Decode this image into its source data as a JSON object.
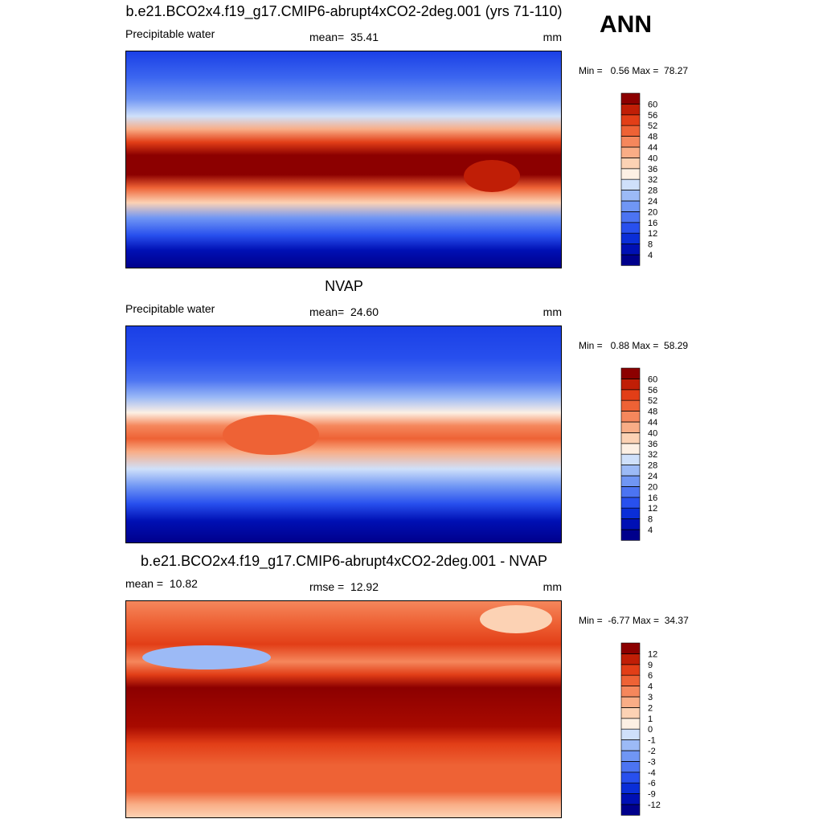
{
  "header": {
    "season": "ANN"
  },
  "panels": [
    {
      "title": "b.e21.BCO2x4.f19_g17.CMIP6-abrupt4xCO2-2deg.001 (yrs 71-110)",
      "left_label": "Precipitable water",
      "center_label": "mean=  35.41",
      "right_label": "mm",
      "minmax": "Min =   0.56 Max =  78.27",
      "colorbar": {
        "levels": [
          4,
          8,
          12,
          16,
          20,
          24,
          28,
          32,
          36,
          40,
          44,
          48,
          52,
          56,
          60
        ],
        "colors": [
          "#00008c",
          "#0010b4",
          "#0a2ed8",
          "#2850ee",
          "#4c74f2",
          "#7096f4",
          "#9cbaf6",
          "#cfe0fa",
          "#fdf0e4",
          "#fcd2b4",
          "#f9ad86",
          "#f5875c",
          "#ee6235",
          "#e23e17",
          "#c01e06",
          "#8c0000"
        ]
      }
    },
    {
      "title": "NVAP",
      "left_label": "Precipitable water",
      "center_label": "mean=  24.60",
      "right_label": "mm",
      "minmax": "Min =   0.88 Max =  58.29",
      "colorbar": {
        "levels": [
          4,
          8,
          12,
          16,
          20,
          24,
          28,
          32,
          36,
          40,
          44,
          48,
          52,
          56,
          60
        ],
        "colors": [
          "#00008c",
          "#0010b4",
          "#0a2ed8",
          "#2850ee",
          "#4c74f2",
          "#7096f4",
          "#9cbaf6",
          "#cfe0fa",
          "#fdf0e4",
          "#fcd2b4",
          "#f9ad86",
          "#f5875c",
          "#ee6235",
          "#e23e17",
          "#c01e06",
          "#8c0000"
        ]
      }
    },
    {
      "title": "b.e21.BCO2x4.f19_g17.CMIP6-abrupt4xCO2-2deg.001 - NVAP",
      "left_label": "mean =  10.82",
      "center_label": "rmse =  12.92",
      "right_label": "mm",
      "minmax": "Min =  -6.77 Max =  34.37",
      "colorbar": {
        "levels": [
          -12,
          -9,
          -6,
          -4,
          -3,
          -2,
          -1,
          0,
          1,
          2,
          3,
          4,
          6,
          9,
          12
        ],
        "colors": [
          "#00008c",
          "#0010b4",
          "#0a2ed8",
          "#2850ee",
          "#4c74f2",
          "#7096f4",
          "#9cbaf6",
          "#cfe0fa",
          "#fdf0e4",
          "#fcd2b4",
          "#f9ad86",
          "#f5875c",
          "#ee6235",
          "#e23e17",
          "#c01e06",
          "#8c0000"
        ]
      }
    }
  ]
}
